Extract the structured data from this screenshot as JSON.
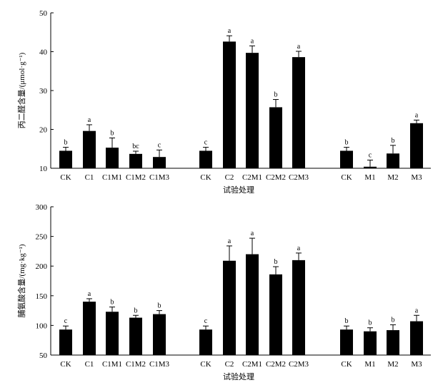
{
  "chart_data": [
    {
      "type": "bar",
      "ylabel": "丙二醛含量/(μmol·g⁻¹)",
      "xlabel": "试验处理",
      "ylim": [
        10,
        50
      ],
      "yticks": [
        10,
        20,
        30,
        40,
        50
      ],
      "categories": [
        "CK",
        "C1",
        "C1M1",
        "C1M2",
        "C1M3",
        "CK",
        "C2",
        "C2M1",
        "C2M2",
        "C2M3",
        "CK",
        "M1",
        "M2",
        "M3"
      ],
      "groups": [
        5,
        5,
        4
      ],
      "values": [
        14.5,
        19.6,
        15.3,
        13.7,
        12.9,
        14.5,
        42.6,
        39.7,
        25.7,
        38.6,
        14.5,
        10.4,
        13.8,
        21.6
      ],
      "errors": [
        0.9,
        1.6,
        2.5,
        0.7,
        1.8,
        0.9,
        1.5,
        1.8,
        2.0,
        1.5,
        0.9,
        1.7,
        2.1,
        0.8
      ],
      "significance": [
        "b",
        "a",
        "b",
        "bc",
        "c",
        "c",
        "a",
        "a",
        "b",
        "a",
        "b",
        "c",
        "b",
        "a"
      ]
    },
    {
      "type": "bar",
      "ylabel": "脯氨酸含量/(mg·kg⁻¹)",
      "xlabel": "试验处理",
      "ylim": [
        50,
        300
      ],
      "yticks": [
        50,
        100,
        150,
        200,
        250,
        300
      ],
      "categories": [
        "CK",
        "C1",
        "C1M1",
        "C1M2",
        "C1M3",
        "CK",
        "C2",
        "C2M1",
        "C2M2",
        "C2M3",
        "CK",
        "M1",
        "M2",
        "M3"
      ],
      "groups": [
        5,
        5,
        4
      ],
      "values": [
        93,
        140,
        123,
        113,
        119,
        93,
        209,
        220,
        186,
        210,
        93,
        90,
        92,
        107
      ],
      "errors": [
        6,
        5,
        8,
        4,
        6,
        6,
        25,
        27,
        13,
        12,
        6,
        6,
        9,
        10
      ],
      "significance": [
        "c",
        "a",
        "b",
        "b",
        "b",
        "c",
        "a",
        "a",
        "b",
        "a",
        "b",
        "b",
        "b",
        "a"
      ]
    }
  ]
}
